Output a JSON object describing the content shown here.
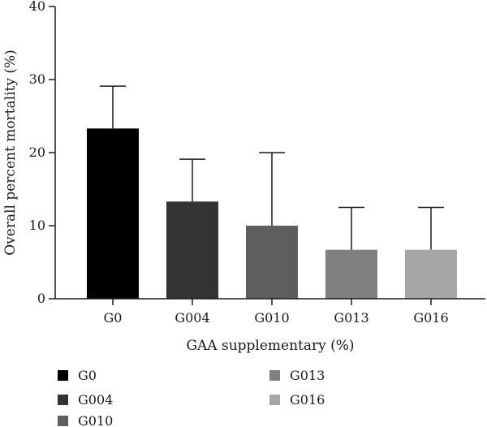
{
  "chart_data": {
    "type": "bar",
    "categories": [
      "G0",
      "G004",
      "G010",
      "G013",
      "G016"
    ],
    "values": [
      23.3,
      13.3,
      10.0,
      6.7,
      6.7
    ],
    "errors": [
      5.8,
      5.8,
      10.0,
      5.8,
      5.8
    ],
    "colors": [
      "#000000",
      "#333333",
      "#5e5e5e",
      "#808080",
      "#a6a6a6"
    ],
    "xlabel": "GAA supplementary (%)",
    "ylabel": "Overall percent mortality (%)",
    "ylim": [
      0,
      40
    ],
    "yticks": [
      "0",
      "10",
      "20",
      "30",
      "40"
    ],
    "grid": false,
    "legend": {
      "placement": "bottom",
      "items": [
        {
          "label": "G0",
          "color": "#000000"
        },
        {
          "label": "G004",
          "color": "#333333"
        },
        {
          "label": "G010",
          "color": "#5e5e5e"
        },
        {
          "label": "G013",
          "color": "#808080"
        },
        {
          "label": "G016",
          "color": "#a6a6a6"
        }
      ]
    }
  }
}
